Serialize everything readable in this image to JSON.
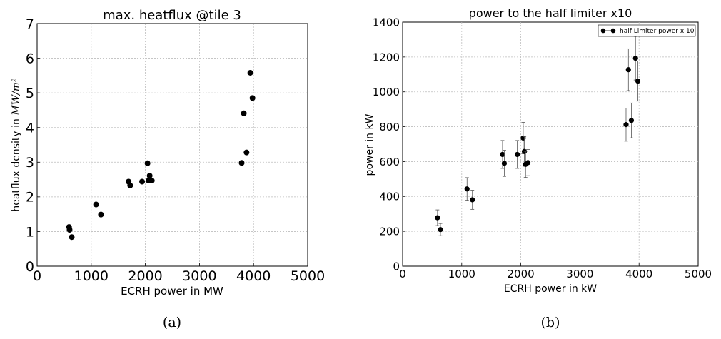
{
  "chart_data": [
    {
      "type": "scatter",
      "title": "max. heatflux @tile 3",
      "xlabel": "ECRH power in MW",
      "ylabel_prefix": "heatflux density in ",
      "ylabel_unit": "MW/m²",
      "xlim": [
        0,
        5000
      ],
      "ylim": [
        0,
        7
      ],
      "xticks": [
        "0",
        "1000",
        "2000",
        "3000",
        "4000",
        "5000"
      ],
      "yticks": [
        "0",
        "1",
        "2",
        "3",
        "4",
        "5",
        "6",
        "7"
      ],
      "grid": true,
      "caption": "(a)",
      "points": [
        {
          "x": 590,
          "y": 1.13
        },
        {
          "x": 600,
          "y": 1.05
        },
        {
          "x": 640,
          "y": 0.84
        },
        {
          "x": 1090,
          "y": 1.78
        },
        {
          "x": 1180,
          "y": 1.49
        },
        {
          "x": 1690,
          "y": 2.44
        },
        {
          "x": 1720,
          "y": 2.33
        },
        {
          "x": 1940,
          "y": 2.44
        },
        {
          "x": 2040,
          "y": 2.97
        },
        {
          "x": 2060,
          "y": 2.47
        },
        {
          "x": 2080,
          "y": 2.61
        },
        {
          "x": 2120,
          "y": 2.47
        },
        {
          "x": 3780,
          "y": 2.98
        },
        {
          "x": 3820,
          "y": 4.41
        },
        {
          "x": 3870,
          "y": 3.28
        },
        {
          "x": 3940,
          "y": 5.58
        },
        {
          "x": 3980,
          "y": 4.85
        }
      ]
    },
    {
      "type": "scatter",
      "title": "power to the half limiter x10",
      "xlabel": "ECRH power in kW",
      "ylabel": "power in kW",
      "xlim": [
        0,
        5000
      ],
      "ylim": [
        0,
        1400
      ],
      "xticks": [
        "0",
        "1000",
        "2000",
        "3000",
        "4000",
        "5000"
      ],
      "yticks": [
        "0",
        "200",
        "400",
        "600",
        "800",
        "1000",
        "1200",
        "1400"
      ],
      "grid": true,
      "legend": {
        "position": "top-right",
        "label": "half Limiter power x 10"
      },
      "caption": "(b)",
      "points": [
        {
          "x": 590,
          "y": 278,
          "err": 45
        },
        {
          "x": 640,
          "y": 210,
          "err": 35
        },
        {
          "x": 1090,
          "y": 443,
          "err": 65
        },
        {
          "x": 1180,
          "y": 381,
          "err": 55
        },
        {
          "x": 1690,
          "y": 641,
          "err": 80
        },
        {
          "x": 1720,
          "y": 590,
          "err": 75
        },
        {
          "x": 1940,
          "y": 641,
          "err": 80
        },
        {
          "x": 2040,
          "y": 735,
          "err": 90
        },
        {
          "x": 2060,
          "y": 658,
          "err": 85
        },
        {
          "x": 2080,
          "y": 584,
          "err": 75
        },
        {
          "x": 2120,
          "y": 594,
          "err": 75
        },
        {
          "x": 3780,
          "y": 812,
          "err": 95
        },
        {
          "x": 3820,
          "y": 1127,
          "err": 120
        },
        {
          "x": 3870,
          "y": 836,
          "err": 100
        },
        {
          "x": 3940,
          "y": 1193,
          "err": 125
        },
        {
          "x": 3980,
          "y": 1062,
          "err": 115
        }
      ]
    }
  ]
}
